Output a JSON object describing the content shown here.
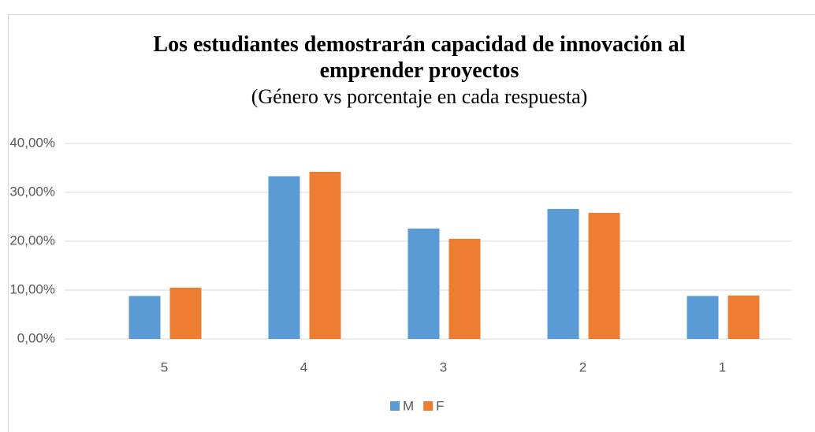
{
  "chart_data": {
    "type": "bar",
    "title": "Los estudiantes demostrarán capacidad  de innovación al emprender proyectos",
    "subtitle": "(Género vs porcentaje en cada respuesta)",
    "categories": [
      "5",
      "4",
      "3",
      "2",
      "1"
    ],
    "series": [
      {
        "name": "M",
        "color": "#5b9bd5",
        "values": [
          8.8,
          33.3,
          22.6,
          26.6,
          8.8
        ]
      },
      {
        "name": "F",
        "color": "#ed7d31",
        "values": [
          10.5,
          34.2,
          20.5,
          25.8,
          8.9
        ]
      }
    ],
    "ylim": [
      0,
      40
    ],
    "yticks": [
      {
        "value": 0,
        "label": "0,00%"
      },
      {
        "value": 10,
        "label": "10,00%"
      },
      {
        "value": 20,
        "label": "20,00%"
      },
      {
        "value": 30,
        "label": "30,00%"
      },
      {
        "value": 40,
        "label": "40,00%"
      }
    ],
    "grid": true,
    "legend": "bottom"
  }
}
